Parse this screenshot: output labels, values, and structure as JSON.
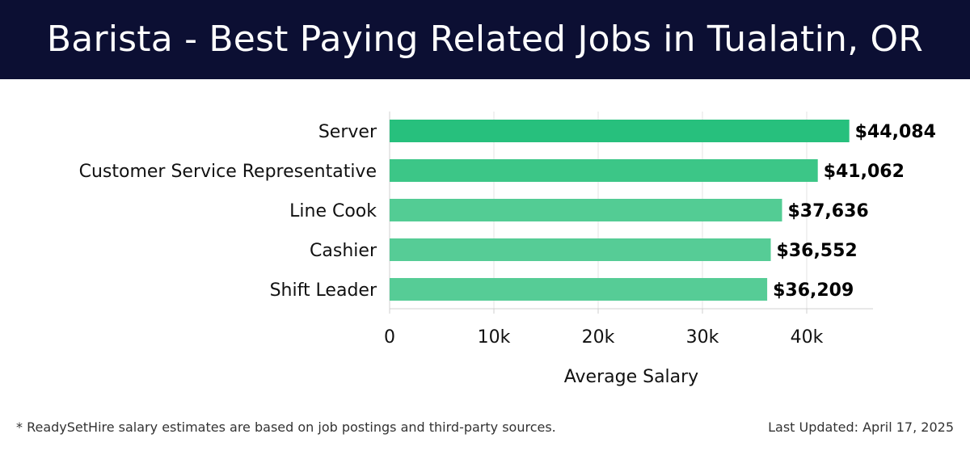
{
  "header": {
    "title": "Barista - Best Paying Related Jobs in Tualatin, OR"
  },
  "chart_data": {
    "type": "bar",
    "orientation": "horizontal",
    "categories": [
      "Server",
      "Customer Service Representative",
      "Line Cook",
      "Cashier",
      "Shift Leader"
    ],
    "values": [
      44084,
      41062,
      37636,
      36552,
      36209
    ],
    "value_labels": [
      "$44,084",
      "$41,062",
      "$37,636",
      "$36,552",
      "$36,209"
    ],
    "bar_colors": [
      "#27c07d",
      "#3cc687",
      "#53cc94",
      "#56cc96",
      "#56cc96"
    ],
    "xlabel": "Average Salary",
    "ylabel": "",
    "xlim": [
      0,
      46000
    ],
    "xticks": [
      0,
      10000,
      20000,
      30000,
      40000
    ],
    "xtick_labels": [
      "0",
      "10k",
      "20k",
      "30k",
      "40k"
    ],
    "grid": "vertical",
    "legend": "none"
  },
  "footer": {
    "note": "* ReadySetHire salary estimates are based on job postings and third-party sources.",
    "updated": "Last Updated: April 17, 2025"
  }
}
